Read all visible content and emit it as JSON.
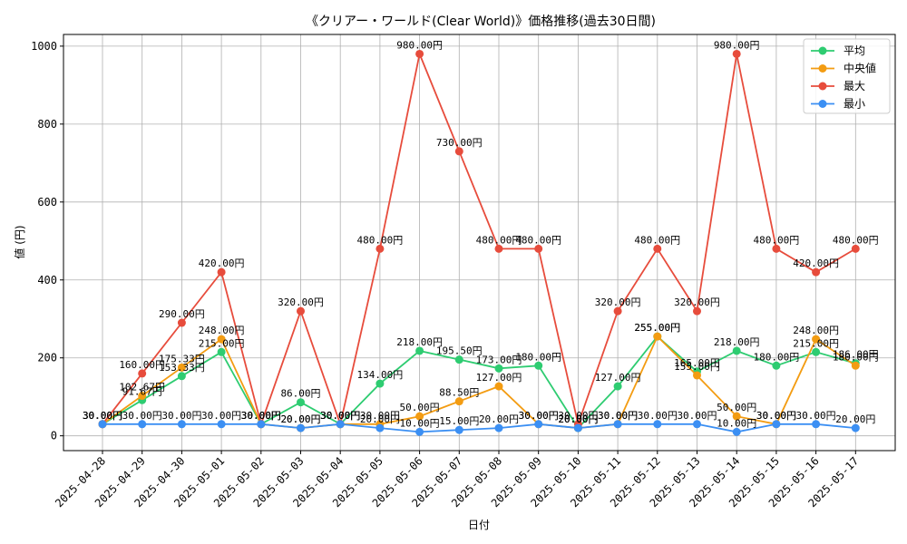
{
  "chart_data": {
    "type": "line",
    "title": "《クリアー・ワールド(Clear World)》価格推移(過去30日間)",
    "xlabel": "日付",
    "ylabel": "値 (円)",
    "ylim": [
      -38,
      1030
    ],
    "yticks": [
      0,
      200,
      400,
      600,
      800,
      1000
    ],
    "grid": true,
    "legend_position": "top-right",
    "label_suffix": "円",
    "categories": [
      "2025-04-28",
      "2025-04-29",
      "2025-04-30",
      "2025-05-01",
      "2025-05-02",
      "2025-05-03",
      "2025-05-04",
      "2025-05-05",
      "2025-05-06",
      "2025-05-07",
      "2025-05-08",
      "2025-05-09",
      "2025-05-10",
      "2025-05-11",
      "2025-05-12",
      "2025-05-13",
      "2025-05-14",
      "2025-05-15",
      "2025-05-16",
      "2025-05-17"
    ],
    "series": [
      {
        "name": "平均",
        "color": "#2ecc71",
        "values": [
          30.0,
          91.67,
          153.33,
          215.0,
          30.0,
          86.0,
          30.0,
          134.0,
          218.0,
          195.5,
          173.0,
          180.0,
          20.0,
          127.0,
          255.0,
          165.0,
          218.0,
          180.0,
          215.0,
          186.0
        ]
      },
      {
        "name": "中央値",
        "color": "#f39c12",
        "values": [
          30.0,
          102.67,
          175.33,
          248.0,
          30.0,
          20.0,
          30.0,
          30.0,
          50.0,
          88.5,
          127.0,
          30.0,
          20.0,
          30.0,
          255.0,
          155.0,
          50.0,
          30.0,
          248.0,
          180.0
        ]
      },
      {
        "name": "最大",
        "color": "#e74c3c",
        "values": [
          30.0,
          160.0,
          290.0,
          420.0,
          30.0,
          320.0,
          30.0,
          480.0,
          980.0,
          730.0,
          480.0,
          480.0,
          30.0,
          320.0,
          480.0,
          320.0,
          980.0,
          480.0,
          420.0,
          480.0
        ]
      },
      {
        "name": "最小",
        "color": "#3b8ff3",
        "values": [
          30.0,
          30.0,
          30.0,
          30.0,
          30.0,
          20.0,
          30.0,
          20.0,
          10.0,
          15.0,
          20.0,
          30.0,
          20.0,
          30.0,
          30.0,
          30.0,
          10.0,
          30.0,
          30.0,
          20.0
        ]
      }
    ]
  }
}
